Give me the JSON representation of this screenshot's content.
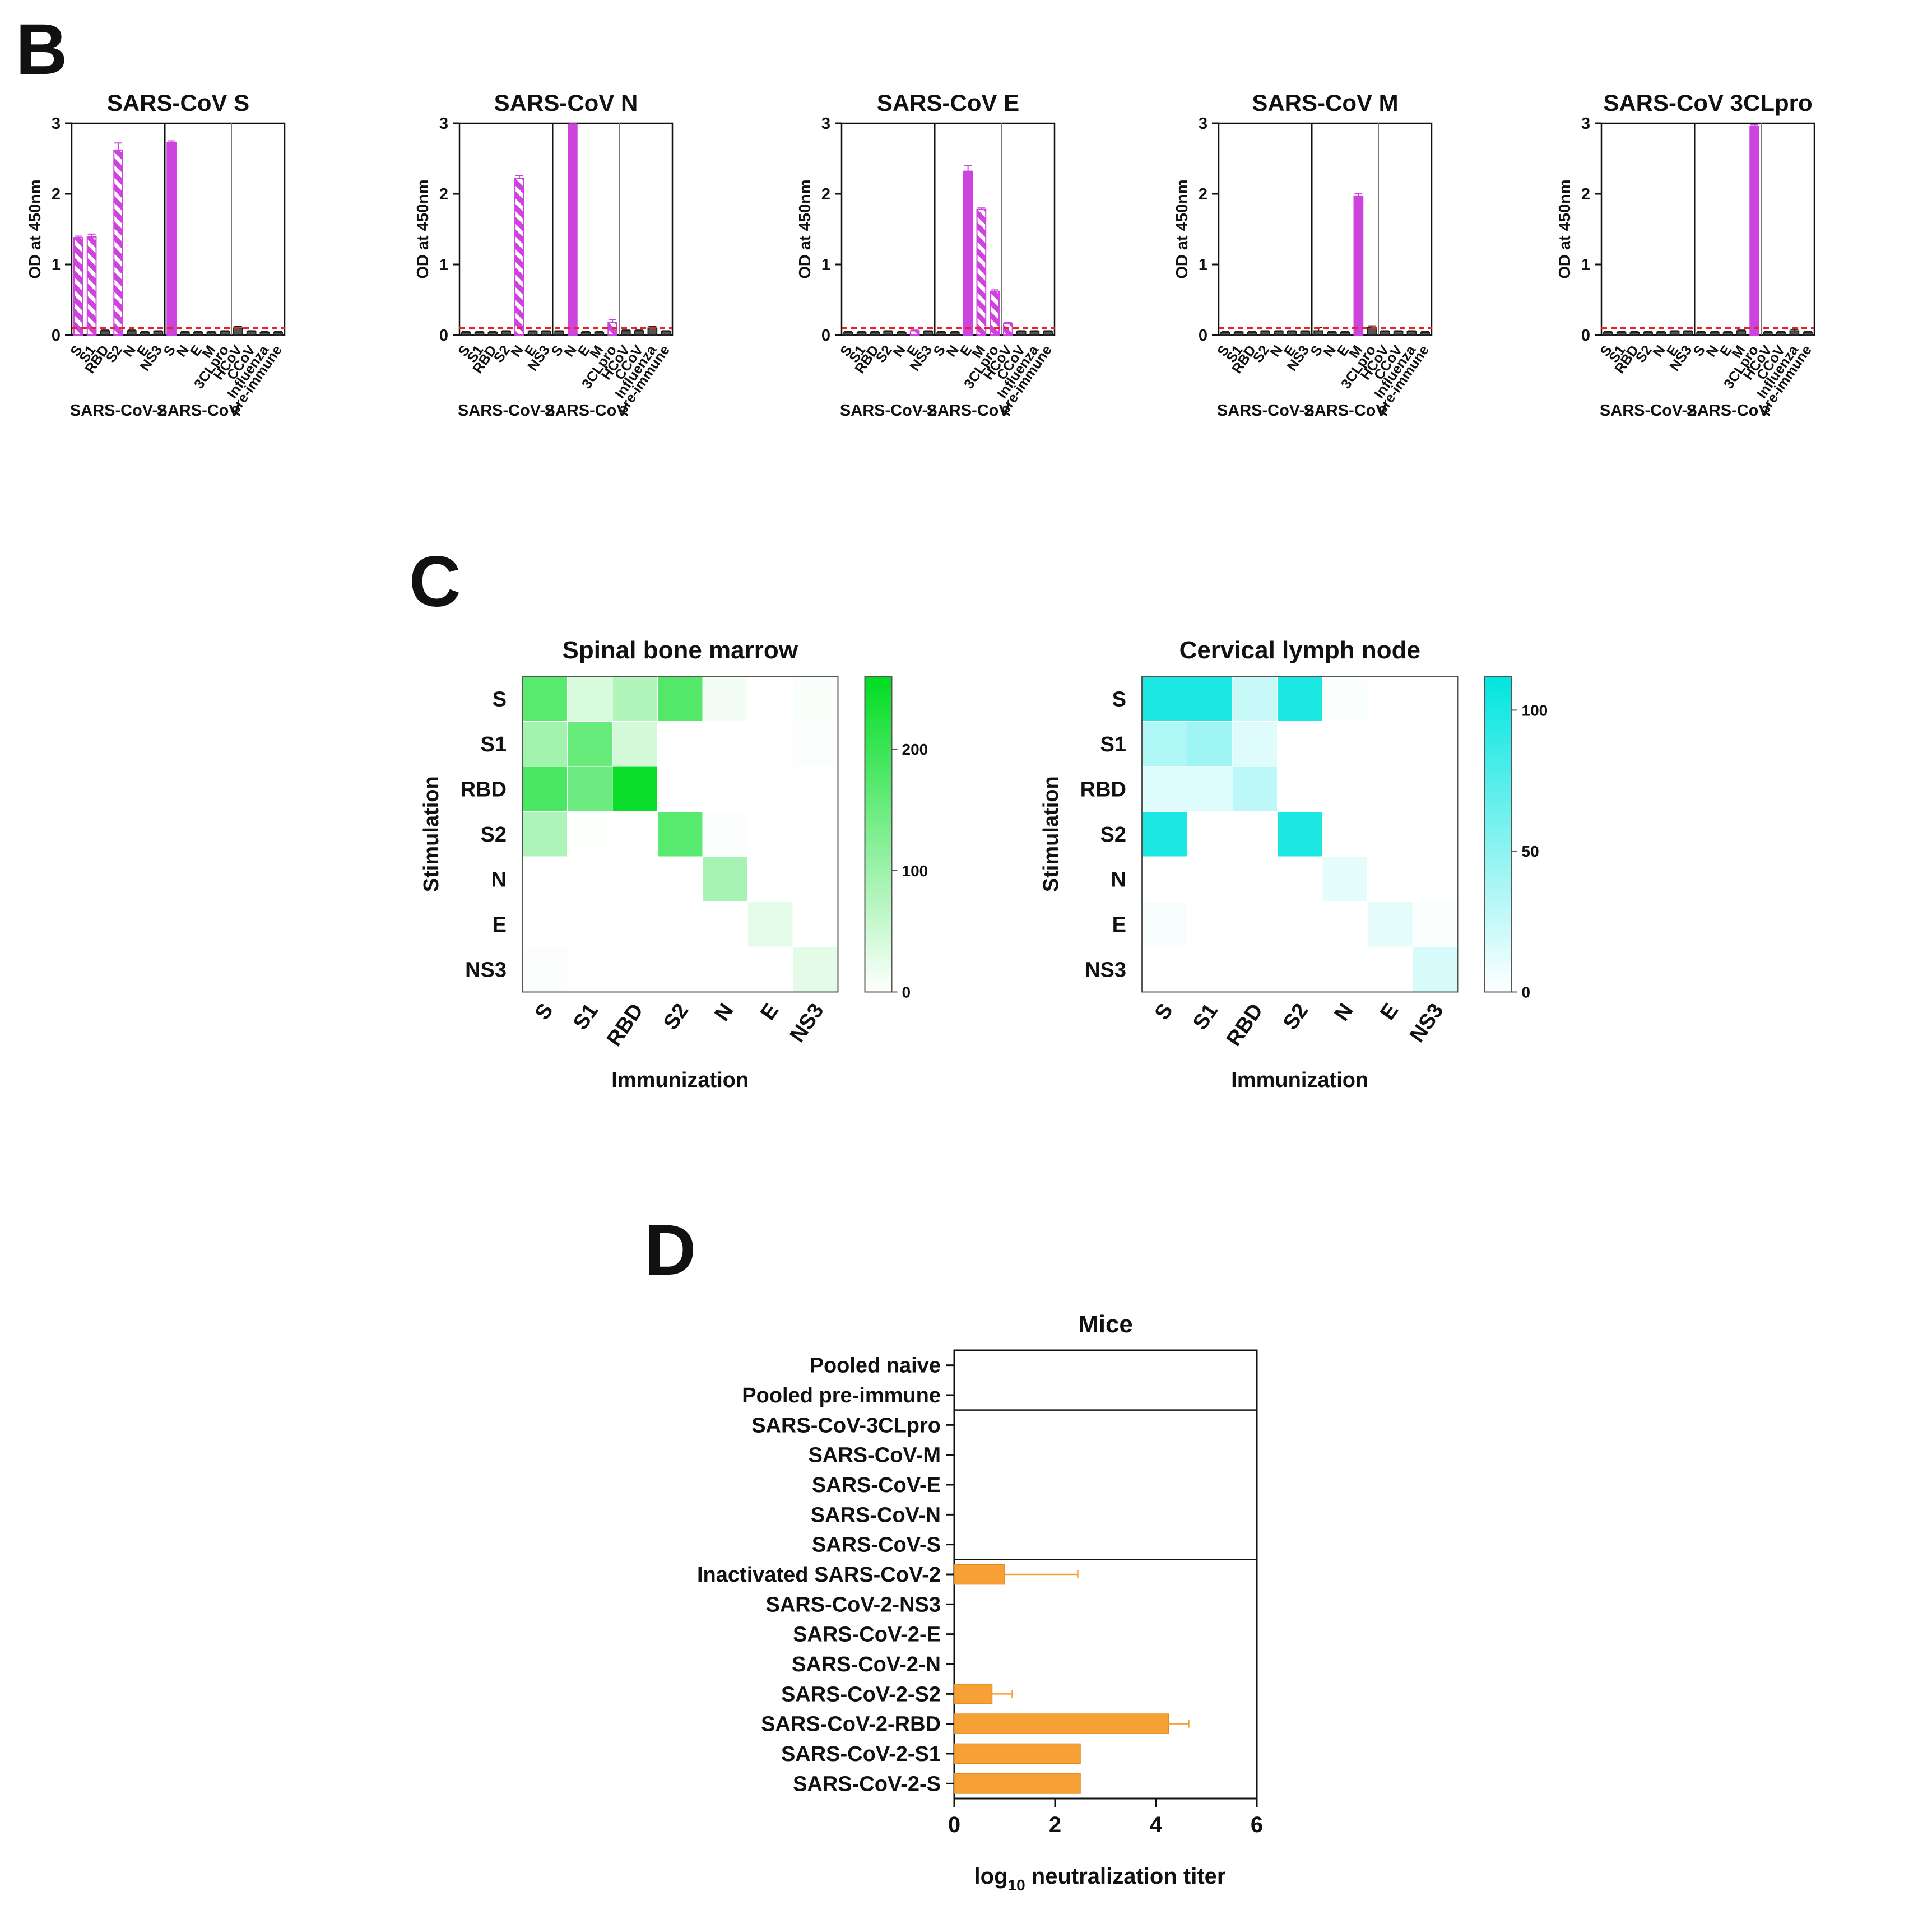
{
  "figure": {
    "panel_b_letter": "B",
    "panel_c_letter": "C",
    "panel_d_letter": "D"
  },
  "colors": {
    "magenta": "#cc44dd",
    "dark_bar": "#555555",
    "threshold": "#ee2222",
    "green_max": "#00dd22",
    "cyan_max": "#00e5e0",
    "orange": "#f7a035"
  },
  "chart_data": [
    {
      "id": "B1",
      "type": "bar",
      "title": "SARS-CoV S",
      "ylabel": "OD at 450nm",
      "ylim": [
        0,
        3
      ],
      "yticks": [
        0,
        1,
        2,
        3
      ],
      "threshold": 0.1,
      "categories": [
        "S",
        "S1",
        "RBD",
        "S2",
        "N",
        "E",
        "NS3",
        "S",
        "N",
        "E",
        "M",
        "3CLpro",
        "HCoV",
        "CCoV",
        "Influenza",
        "pre-immune"
      ],
      "group_labels": [
        "SARS-CoV-2",
        "SARS-CoV"
      ],
      "values": [
        1.38,
        1.39,
        0.06,
        2.62,
        0.06,
        0.04,
        0.05,
        2.73,
        0.04,
        0.04,
        0.04,
        0.05,
        0.1,
        0.05,
        0.04,
        0.04
      ],
      "errors": [
        0.02,
        0.04,
        0.01,
        0.1,
        0.01,
        0.01,
        0.01,
        0.02,
        0.01,
        0.01,
        0.01,
        0.01,
        0.02,
        0.01,
        0.01,
        0.01
      ],
      "styles": [
        "h",
        "h",
        "d",
        "h",
        "d",
        "d",
        "d",
        "s",
        "d",
        "d",
        "d",
        "d",
        "d",
        "d",
        "d",
        "d"
      ]
    },
    {
      "id": "B2",
      "type": "bar",
      "title": "SARS-CoV N",
      "ylabel": "OD at 450nm",
      "ylim": [
        0,
        3
      ],
      "yticks": [
        0,
        1,
        2,
        3
      ],
      "threshold": 0.1,
      "categories": [
        "S",
        "S1",
        "RBD",
        "S2",
        "N",
        "E",
        "NS3",
        "S",
        "N",
        "E",
        "M",
        "3CLpro",
        "HCoV",
        "CCoV",
        "Influenza",
        "pre-immune"
      ],
      "group_labels": [
        "SARS-CoV-2",
        "SARS-CoV"
      ],
      "values": [
        0.04,
        0.04,
        0.04,
        0.05,
        2.22,
        0.05,
        0.05,
        0.05,
        2.98,
        0.04,
        0.04,
        0.18,
        0.06,
        0.06,
        0.1,
        0.05
      ],
      "errors": [
        0.01,
        0.01,
        0.01,
        0.01,
        0.04,
        0.01,
        0.01,
        0.01,
        0.01,
        0.01,
        0.01,
        0.04,
        0.01,
        0.01,
        0.02,
        0.01
      ],
      "styles": [
        "d",
        "d",
        "d",
        "d",
        "h",
        "d",
        "d",
        "d",
        "s",
        "d",
        "d",
        "h",
        "d",
        "d",
        "d",
        "d"
      ]
    },
    {
      "id": "B3",
      "type": "bar",
      "title": "SARS-CoV E",
      "ylabel": "OD at 450nm",
      "ylim": [
        0,
        3
      ],
      "yticks": [
        0,
        1,
        2,
        3
      ],
      "threshold": 0.1,
      "categories": [
        "S",
        "S1",
        "RBD",
        "S2",
        "N",
        "E",
        "NS3",
        "S",
        "N",
        "E",
        "M",
        "3CLpro",
        "HCoV",
        "CCoV",
        "Influenza",
        "pre-immune"
      ],
      "group_labels": [
        "SARS-CoV-2",
        "SARS-CoV"
      ],
      "values": [
        0.04,
        0.04,
        0.04,
        0.05,
        0.04,
        0.06,
        0.05,
        0.04,
        0.04,
        2.32,
        1.78,
        0.62,
        0.16,
        0.05,
        0.05,
        0.05
      ],
      "errors": [
        0.01,
        0.01,
        0.01,
        0.01,
        0.01,
        0.01,
        0.01,
        0.01,
        0.01,
        0.08,
        0.02,
        0.02,
        0.02,
        0.01,
        0.01,
        0.01
      ],
      "styles": [
        "d",
        "d",
        "d",
        "d",
        "d",
        "h",
        "d",
        "d",
        "d",
        "s",
        "h",
        "h",
        "h",
        "d",
        "d",
        "d"
      ]
    },
    {
      "id": "B4",
      "type": "bar",
      "title": "SARS-CoV M",
      "ylabel": "OD at 450nm",
      "ylim": [
        0,
        3
      ],
      "yticks": [
        0,
        1,
        2,
        3
      ],
      "threshold": 0.1,
      "categories": [
        "S",
        "S1",
        "RBD",
        "S2",
        "N",
        "E",
        "NS3",
        "S",
        "N",
        "E",
        "M",
        "3CLpro",
        "HCoV",
        "CCoV",
        "Influenza",
        "pre-immune"
      ],
      "group_labels": [
        "SARS-CoV-2",
        "SARS-CoV"
      ],
      "values": [
        0.04,
        0.04,
        0.04,
        0.05,
        0.05,
        0.05,
        0.05,
        0.06,
        0.04,
        0.04,
        1.97,
        0.11,
        0.05,
        0.05,
        0.05,
        0.04
      ],
      "errors": [
        0.01,
        0.01,
        0.01,
        0.01,
        0.01,
        0.01,
        0.01,
        0.05,
        0.01,
        0.01,
        0.03,
        0.02,
        0.01,
        0.01,
        0.01,
        0.01
      ],
      "styles": [
        "d",
        "d",
        "d",
        "d",
        "d",
        "d",
        "d",
        "d",
        "d",
        "d",
        "s",
        "d",
        "d",
        "d",
        "d",
        "d"
      ]
    },
    {
      "id": "B5",
      "type": "bar",
      "title": "SARS-CoV 3CLpro",
      "ylabel": "OD at 450nm",
      "ylim": [
        0,
        3
      ],
      "yticks": [
        0,
        1,
        2,
        3
      ],
      "threshold": 0.1,
      "categories": [
        "S",
        "S1",
        "RBD",
        "S2",
        "N",
        "E",
        "NS3",
        "S",
        "N",
        "E",
        "M",
        "3CLpro",
        "HCoV",
        "CCoV",
        "Influenza",
        "pre-immune"
      ],
      "group_labels": [
        "SARS-CoV-2",
        "SARS-CoV"
      ],
      "values": [
        0.04,
        0.04,
        0.04,
        0.04,
        0.04,
        0.05,
        0.05,
        0.04,
        0.04,
        0.04,
        0.06,
        2.96,
        0.04,
        0.04,
        0.06,
        0.04
      ],
      "errors": [
        0.01,
        0.01,
        0.01,
        0.01,
        0.01,
        0.01,
        0.01,
        0.01,
        0.01,
        0.01,
        0.01,
        0.02,
        0.01,
        0.01,
        0.02,
        0.01
      ],
      "styles": [
        "d",
        "d",
        "d",
        "d",
        "d",
        "d",
        "d",
        "d",
        "d",
        "d",
        "d",
        "s",
        "d",
        "d",
        "d",
        "d"
      ]
    },
    {
      "id": "C1",
      "type": "heatmap",
      "title": "Spinal bone marrow",
      "xlabel": "Immunization",
      "ylabel": "Stimulation",
      "x_categories": [
        "S",
        "S1",
        "RBD",
        "S2",
        "N",
        "E",
        "NS3"
      ],
      "y_categories": [
        "S",
        "S1",
        "RBD",
        "S2",
        "N",
        "E",
        "NS3"
      ],
      "color_max": 260,
      "colorbar_ticks": [
        0,
        100,
        200
      ],
      "values": [
        [
          170,
          40,
          80,
          175,
          12,
          0,
          5
        ],
        [
          95,
          155,
          45,
          0,
          0,
          0,
          4
        ],
        [
          185,
          150,
          250,
          0,
          0,
          0,
          0
        ],
        [
          85,
          3,
          0,
          170,
          4,
          0,
          0
        ],
        [
          0,
          0,
          0,
          0,
          90,
          0,
          0
        ],
        [
          0,
          0,
          0,
          0,
          0,
          25,
          0
        ],
        [
          4,
          0,
          0,
          0,
          0,
          0,
          28
        ]
      ]
    },
    {
      "id": "C2",
      "type": "heatmap",
      "title": "Cervical lymph node",
      "xlabel": "Immunization",
      "ylabel": "Stimulation",
      "x_categories": [
        "S",
        "S1",
        "RBD",
        "S2",
        "N",
        "E",
        "NS3"
      ],
      "y_categories": [
        "S",
        "S1",
        "RBD",
        "S2",
        "N",
        "E",
        "NS3"
      ],
      "color_max": 112,
      "colorbar_ticks": [
        0,
        50,
        100
      ],
      "values": [
        [
          100,
          100,
          25,
          100,
          2,
          0,
          0
        ],
        [
          35,
          42,
          15,
          0,
          0,
          0,
          0
        ],
        [
          15,
          15,
          30,
          0,
          0,
          0,
          0
        ],
        [
          100,
          0,
          0,
          100,
          0,
          0,
          0
        ],
        [
          0,
          0,
          0,
          0,
          12,
          0,
          0
        ],
        [
          3,
          0,
          0,
          0,
          0,
          12,
          2
        ],
        [
          0,
          0,
          0,
          0,
          0,
          0,
          18
        ]
      ]
    },
    {
      "id": "D",
      "type": "bar",
      "orientation": "horizontal",
      "title": "Mice",
      "xlabel": "log10 neutralization titer",
      "xlabel_main": "log",
      "xlabel_sub": "10",
      "xlabel_rest": " neutralization titer",
      "xlim": [
        0,
        6
      ],
      "xticks": [
        0,
        2,
        4,
        6
      ],
      "categories": [
        "Pooled naive",
        "Pooled pre-immune",
        "SARS-CoV-3CLpro",
        "SARS-CoV-M",
        "SARS-CoV-E",
        "SARS-CoV-N",
        "SARS-CoV-S",
        "Inactivated SARS-CoV-2",
        "SARS-CoV-2-NS3",
        "SARS-CoV-2-E",
        "SARS-CoV-2-N",
        "SARS-CoV-2-S2",
        "SARS-CoV-2-RBD",
        "SARS-CoV-2-S1",
        "SARS-CoV-2-S"
      ],
      "values": [
        0,
        0,
        0,
        0,
        0,
        0,
        0,
        1.0,
        0,
        0,
        0,
        0.75,
        4.25,
        2.5,
        2.5
      ],
      "errors": [
        0,
        0,
        0,
        0,
        0,
        0,
        0,
        1.45,
        0,
        0,
        0,
        0.4,
        0.4,
        0,
        0
      ]
    }
  ]
}
